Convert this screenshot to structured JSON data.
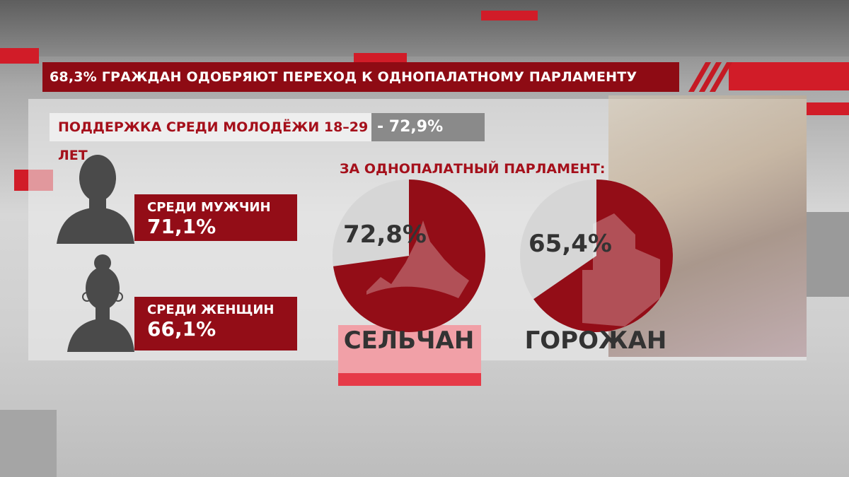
{
  "header": {
    "title": "68,3% ГРАЖДАН ОДОБРЯЮТ ПЕРЕХОД К ОДНОПАЛАТНОМУ ПАРЛАМЕНТУ"
  },
  "youth": {
    "label": "ПОДДЕРЖКА СРЕДИ МОЛОДЁЖИ 18–29 ЛЕТ",
    "value": "- 72,9%"
  },
  "gender": [
    {
      "label": "СРЕДИ МУЖЧИН",
      "value": "71,1%",
      "icon": "man-silhouette-icon"
    },
    {
      "label": "СРЕДИ ЖЕНЩИН",
      "value": "66,1%",
      "icon": "woman-silhouette-icon"
    }
  ],
  "colors": {
    "accent": "#930d17",
    "pie_rest": "#d6d6d6",
    "text": "#333333"
  },
  "chart_data": [
    {
      "type": "pie",
      "title": "ЗА ОДНОПАЛАТНЫЙ ПАРЛАМЕНТ:",
      "category": "СЕЛЬЧАН",
      "value_label": "72,8%",
      "values": [
        72.8,
        27.2
      ],
      "icon": "village-icon"
    },
    {
      "type": "pie",
      "title": "ЗА ОДНОПАЛАТНЫЙ ПАРЛАМЕНТ:",
      "category": "ГОРОЖАН",
      "value_label": "65,4%",
      "values": [
        65.4,
        34.6
      ],
      "icon": "city-buildings-icon"
    }
  ]
}
